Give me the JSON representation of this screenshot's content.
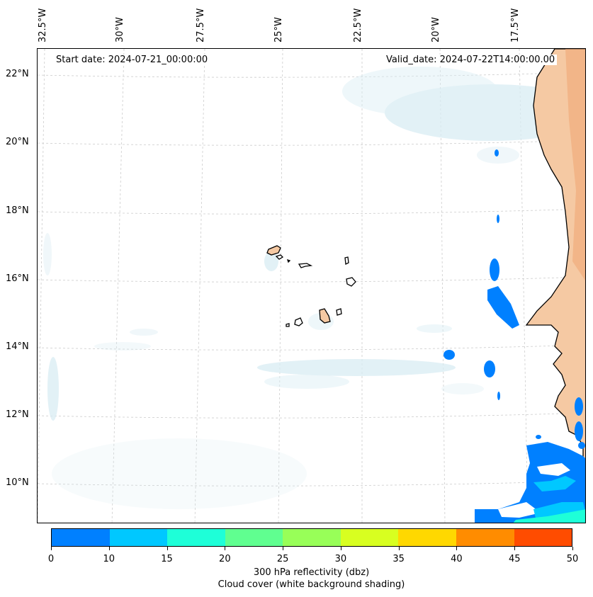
{
  "map": {
    "start_date_text": "Start date: 2024-07-21_00:00:00",
    "valid_date_text": "Valid_date: 2024-07-22T14:00:00.00",
    "longitude_labels": [
      "32.5°W",
      "30°W",
      "27.5°W",
      "25°W",
      "22.5°W",
      "20°W",
      "17.5°W"
    ],
    "latitude_labels": [
      "22°N",
      "20°N",
      "18°N",
      "16°N",
      "14°N",
      "12°N",
      "10°N"
    ],
    "extent": {
      "lon_range": [
        "32.6°W",
        "15.3°W"
      ],
      "lat_range": [
        "8.9°N",
        "22.8°N"
      ]
    },
    "gridlines": "dashed, light gray",
    "layers": [
      "300 hPa reflectivity (filled contours, blue to red)",
      "cloud cover (white/light-blue shading)",
      "land surface (tan/orange)",
      "coastlines (black)"
    ]
  },
  "colorbar": {
    "ticks": [
      "0",
      "10",
      "15",
      "20",
      "25",
      "30",
      "35",
      "40",
      "45",
      "50"
    ],
    "colors": [
      "#0080ff",
      "#00c8ff",
      "#1effd8",
      "#60ff90",
      "#98ff58",
      "#d8ff20",
      "#ffd800",
      "#ff8c00",
      "#ff4c00"
    ],
    "label": "300 hPa reflectivity (dbz)",
    "sublabel": "Cloud cover (white background shading)"
  },
  "colors": {
    "reflectivity_low": "#0080ff",
    "land": "#f5c9a3",
    "cloud_shading": "#d8ecf3"
  }
}
